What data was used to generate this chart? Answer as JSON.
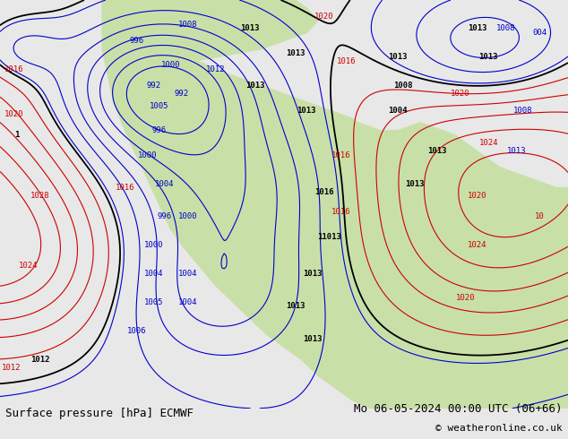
{
  "title_left": "Surface pressure [hPa] ECMWF",
  "title_right": "Mo 06-05-2024 00:00 UTC (06+66)",
  "copyright": "© weatheronline.co.uk",
  "bg_color": "#e8e8e8",
  "land_color": "#c8e0a8",
  "ocean_color": "#e8e8e8",
  "font_size_title": 9,
  "font_size_copyright": 8,
  "contour_color_blue": "#0000cc",
  "contour_color_red": "#cc0000",
  "contour_color_black": "#000000",
  "figsize": [
    6.34,
    4.9
  ],
  "dpi": 100
}
